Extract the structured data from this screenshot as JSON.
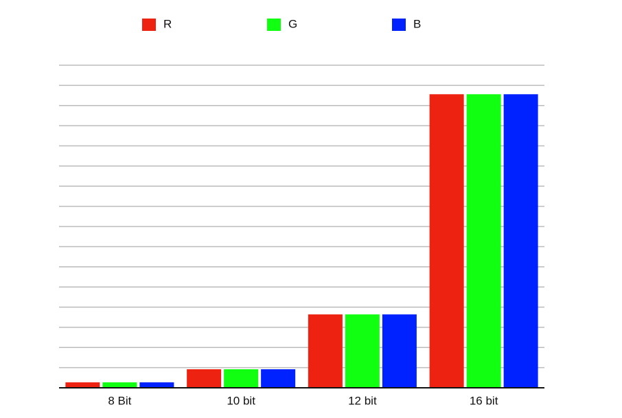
{
  "chart_data": {
    "type": "bar",
    "categories": [
      "8 Bit",
      "10 bit",
      "12 bit",
      "16 bit"
    ],
    "series": [
      {
        "name": "R",
        "color": "#ee2211",
        "values": [
          0.27,
          0.92,
          3.64,
          14.56
        ]
      },
      {
        "name": "G",
        "color": "#11ff11",
        "values": [
          0.27,
          0.92,
          3.64,
          14.56
        ]
      },
      {
        "name": "B",
        "color": "#0022ff",
        "values": [
          0.27,
          0.92,
          3.64,
          14.56
        ]
      }
    ],
    "ylim": [
      0,
      16
    ],
    "yticks": [
      0,
      1,
      2,
      3,
      4,
      5,
      6,
      7,
      8,
      9,
      10,
      11,
      12,
      13,
      14,
      15,
      16
    ],
    "grid": true,
    "legend": "top"
  }
}
